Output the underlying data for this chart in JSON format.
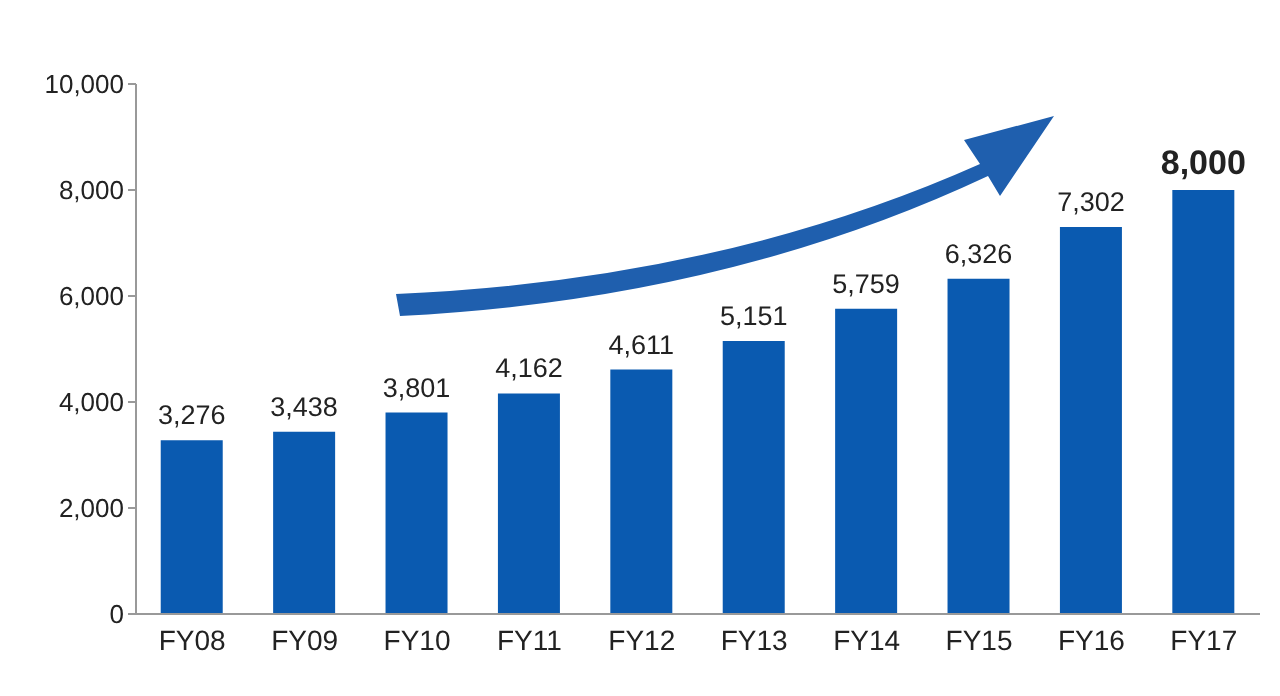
{
  "chart_data": {
    "type": "bar",
    "categories": [
      "FY08",
      "FY09",
      "FY10",
      "FY11",
      "FY12",
      "FY13",
      "FY14",
      "FY15",
      "FY16",
      "FY17"
    ],
    "values": [
      3276,
      3438,
      3801,
      4162,
      4611,
      5151,
      5759,
      6326,
      7302,
      8000
    ],
    "value_labels": [
      "3,276",
      "3,438",
      "3,801",
      "4,162",
      "4,611",
      "5,151",
      "5,759",
      "6,326",
      "7,302",
      "8,000"
    ],
    "color": "#0a5ab0",
    "ylim": [
      0,
      10000
    ],
    "yticks": [
      0,
      {
        "value": 2000,
        "label": "2,000"
      },
      {
        "value": 4000,
        "label": "4,000"
      },
      {
        "value": 6000,
        "label": "6,000"
      },
      {
        "value": 8000,
        "label": "8,000"
      },
      {
        "value": 10000,
        "label": "10,000"
      }
    ]
  }
}
